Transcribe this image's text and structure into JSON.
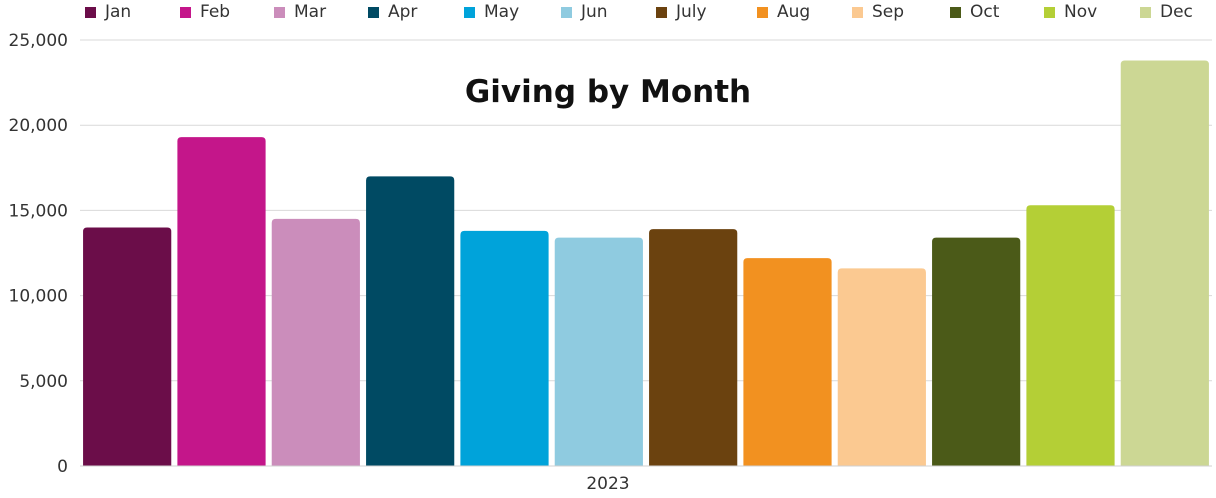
{
  "chart_data": {
    "type": "bar",
    "title": "Giving by Month",
    "xlabel": "",
    "ylabel": "",
    "x_category": "2023",
    "ylim": [
      0,
      25000
    ],
    "yticks": [
      0,
      5000,
      10000,
      15000,
      20000,
      25000
    ],
    "ytick_labels": [
      "0",
      "5,000",
      "10,000",
      "15,000",
      "20,000",
      "25,000"
    ],
    "grid": true,
    "legend_position": "top",
    "series": [
      {
        "name": "Jan",
        "values": [
          14000
        ],
        "color": "#6B0D49"
      },
      {
        "name": "Feb",
        "values": [
          19300
        ],
        "color": "#C4168A"
      },
      {
        "name": "Mar",
        "values": [
          14500
        ],
        "color": "#CB8DBB"
      },
      {
        "name": "Apr",
        "values": [
          17000
        ],
        "color": "#004A63"
      },
      {
        "name": "May",
        "values": [
          13800
        ],
        "color": "#00A3DA"
      },
      {
        "name": "Jun",
        "values": [
          13400
        ],
        "color": "#8FCBE0"
      },
      {
        "name": "July",
        "values": [
          13900
        ],
        "color": "#6B420F"
      },
      {
        "name": "Aug",
        "values": [
          12200
        ],
        "color": "#F29120"
      },
      {
        "name": "Sep",
        "values": [
          11600
        ],
        "color": "#FBC991"
      },
      {
        "name": "Oct",
        "values": [
          13400
        ],
        "color": "#4B5A18"
      },
      {
        "name": "Nov",
        "values": [
          15300
        ],
        "color": "#B4CF36"
      },
      {
        "name": "Dec",
        "values": [
          23800
        ],
        "color": "#CCD794"
      }
    ]
  }
}
